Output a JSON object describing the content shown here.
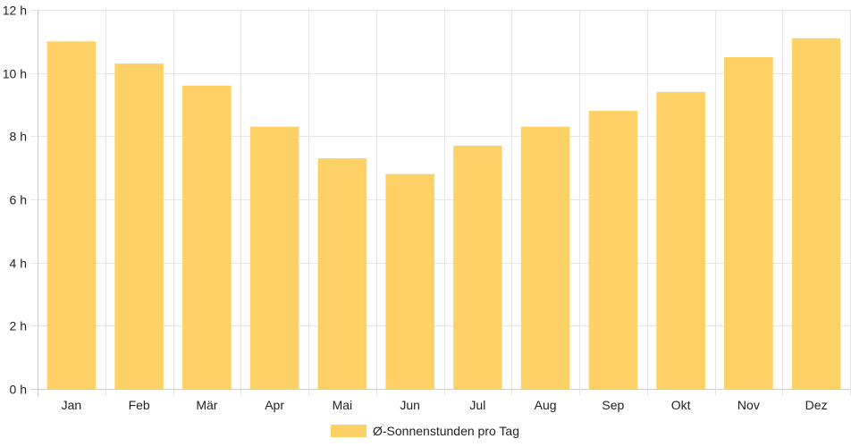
{
  "chart_data": {
    "type": "bar",
    "categories": [
      "Jan",
      "Feb",
      "Mär",
      "Apr",
      "Mai",
      "Jun",
      "Jul",
      "Aug",
      "Sep",
      "Okt",
      "Nov",
      "Dez"
    ],
    "series": [
      {
        "name": "Ø-Sonnenstunden pro Tag",
        "values": [
          11.0,
          10.3,
          9.6,
          8.3,
          7.3,
          6.8,
          7.7,
          8.3,
          8.8,
          9.4,
          10.5,
          11.1
        ],
        "color": "#fdd166"
      }
    ],
    "y_ticks": [
      "0 h",
      "2 h",
      "4 h",
      "6 h",
      "8 h",
      "10 h",
      "12 h"
    ],
    "ylim": [
      0,
      12
    ],
    "grid": true,
    "legend_position": "bottom"
  },
  "colors": {
    "bar": "#fdd166",
    "grid": "#e6e6e6",
    "axis": "#cccccc",
    "text": "#222222"
  }
}
